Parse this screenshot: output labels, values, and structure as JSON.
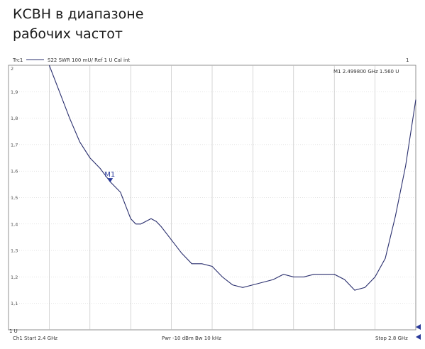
{
  "heading": {
    "line1": "КСВН в диапазоне",
    "line2": "рабочих частот"
  },
  "header": {
    "trace": "Trc1",
    "params": "S22  SWR  100 mU/ Ref 1 U  Cal int",
    "channel_index": "1"
  },
  "marker_readout": "M1  2.499800  GHz  1.560  U",
  "footer": {
    "ref_level": "1 U",
    "start": "Ch1  Start  2.4 GHz",
    "mid": "Pwr  -10 dBm  Bw  10 kHz",
    "stop": "Stop  2.8 GHz"
  },
  "colors": {
    "trace": "#2a2f6e",
    "marker": "#2a3a9a",
    "grid": "#bbbbbb",
    "frame": "#777777"
  },
  "chart_data": {
    "type": "line",
    "title": "КСВН в диапазоне рабочих частот",
    "xlabel": "",
    "ylabel": "",
    "xlim": [
      2.4,
      2.8
    ],
    "ylim": [
      1.0,
      2.0
    ],
    "y_ticks": [
      "2",
      "1,9",
      "1,8",
      "1,7",
      "1,6",
      "1,5",
      "1,4",
      "1,3",
      "1,2",
      "1,1"
    ],
    "grid": true,
    "series": [
      {
        "name": "S22 SWR",
        "x": [
          2.44,
          2.45,
          2.46,
          2.47,
          2.48,
          2.49,
          2.4998,
          2.51,
          2.515,
          2.52,
          2.525,
          2.53,
          2.54,
          2.545,
          2.55,
          2.56,
          2.57,
          2.58,
          2.59,
          2.6,
          2.61,
          2.62,
          2.63,
          2.64,
          2.65,
          2.66,
          2.67,
          2.68,
          2.69,
          2.7,
          2.71,
          2.72,
          2.73,
          2.74,
          2.75,
          2.76,
          2.77,
          2.78,
          2.79,
          2.8
        ],
        "y": [
          2.0,
          1.9,
          1.8,
          1.71,
          1.65,
          1.61,
          1.56,
          1.52,
          1.47,
          1.42,
          1.4,
          1.4,
          1.42,
          1.41,
          1.39,
          1.34,
          1.29,
          1.25,
          1.25,
          1.24,
          1.2,
          1.17,
          1.16,
          1.17,
          1.18,
          1.19,
          1.21,
          1.2,
          1.2,
          1.21,
          1.21,
          1.21,
          1.19,
          1.15,
          1.16,
          1.2,
          1.27,
          1.43,
          1.62,
          1.87
        ]
      }
    ],
    "markers": [
      {
        "name": "M1",
        "x": 2.4998,
        "y": 1.56
      }
    ]
  }
}
